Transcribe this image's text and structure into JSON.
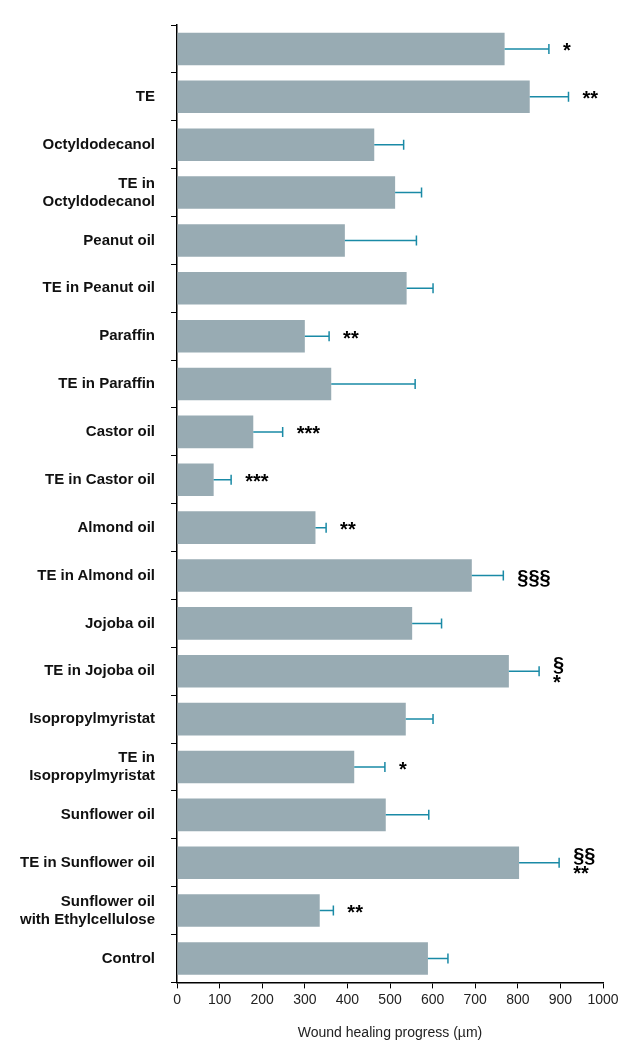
{
  "chart_data": {
    "type": "bar",
    "orientation": "horizontal",
    "xlabel": "Wound healing progress (µm)",
    "categories": [
      null,
      "TE",
      "Octyldodecanol",
      "TE in\nOctyldodecanol",
      "Peanut oil",
      "TE in Peanut oil",
      "Paraffin",
      "TE in Paraffin",
      "Castor oil",
      "TE in Castor oil",
      "Almond oil",
      "TE in Almond oil",
      "Jojoba oil",
      "TE in Jojoba oil",
      "Isopropylmyristat",
      "TE in\nIsopropylmyristat",
      "Sunflower oil",
      "TE in Sunflower oil",
      "Sunflower oil\nwith Ethylcellulose",
      "Control"
    ],
    "values": [
      769,
      828,
      463,
      512,
      394,
      539,
      300,
      362,
      179,
      86,
      325,
      692,
      552,
      779,
      537,
      416,
      490,
      803,
      335,
      589
    ],
    "errors": [
      [
        769,
        873
      ],
      [
        828,
        919
      ],
      [
        463,
        532
      ],
      [
        512,
        574
      ],
      [
        394,
        562
      ],
      [
        539,
        601
      ],
      [
        300,
        357
      ],
      [
        362,
        559
      ],
      [
        179,
        248
      ],
      [
        86,
        127
      ],
      [
        325,
        350
      ],
      [
        692,
        766
      ],
      [
        552,
        621
      ],
      [
        779,
        850
      ],
      [
        537,
        601
      ],
      [
        416,
        488
      ],
      [
        490,
        591
      ],
      [
        803,
        897
      ],
      [
        335,
        367
      ],
      [
        589,
        636
      ]
    ],
    "color": "#98abb3",
    "xlim": [
      0,
      1000
    ],
    "xticks": [
      0,
      100,
      200,
      300,
      400,
      500,
      600,
      700,
      800,
      900,
      1000
    ],
    "grid": false,
    "legend": false,
    "annotations": [
      "*",
      {
        "text": "**",
        "x": 919,
        "y": "TE"
      },
      {
        "text": "**",
        "x": 357,
        "y": "Paraffin"
      },
      {
        "text": "***",
        "x": 248,
        "y": "Castor oil"
      },
      {
        "text": "***",
        "x": 127,
        "y": "TE in Castor oil"
      },
      {
        "text": "**",
        "x": 350,
        "y": "Almond oil"
      },
      {
        "text": "§§§",
        "x": 766,
        "y": "TE in Almond oil"
      },
      {
        "text": "§",
        "x": 850,
        "y": "TE in Jojoba oil"
      },
      {
        "text": "*",
        "x": 850,
        "y": "TE in Jojoba oil"
      },
      {
        "text": "*",
        "x": 488,
        "y": "TE in\nIsopropylmyristat"
      },
      {
        "text": "§§",
        "x": 897,
        "y": "TE in Sunflower oil"
      },
      {
        "text": "**",
        "x": 897,
        "y": "TE in Sunflower oil"
      },
      {
        "text": "**",
        "x": 367,
        "y": "Sunflower oil\nwith Ethylcellulose"
      }
    ]
  }
}
